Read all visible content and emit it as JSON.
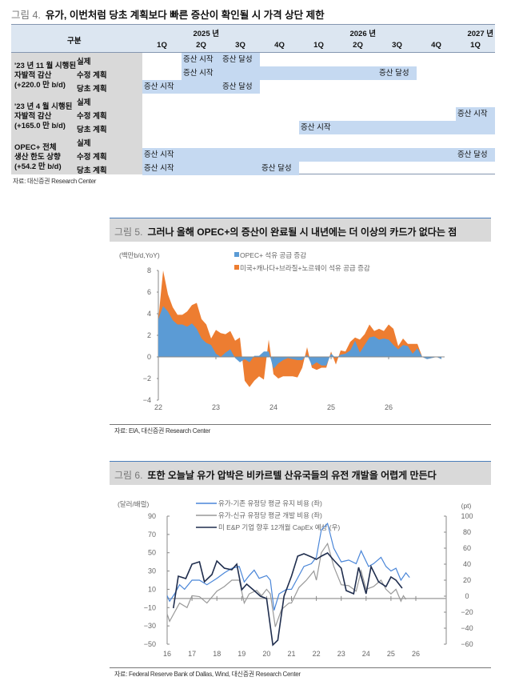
{
  "fig4": {
    "num": "그림 4.",
    "title": "유가, 이번처럼 당초 계획보다 빠른 증산이 확인될 시 가격 상단 제한",
    "header": {
      "label": "구분",
      "years": [
        {
          "label": "2025 년",
          "col": 2
        },
        {
          "label": "2026 년",
          "col": 6
        },
        {
          "label": "2027 년",
          "col": 9
        }
      ],
      "quarters": [
        "1Q",
        "2Q",
        "3Q",
        "4Q",
        "1Q",
        "2Q",
        "3Q",
        "4Q",
        "1Q"
      ]
    },
    "groups": [
      {
        "label": [
          "'23 년 11 월 시행된",
          "자발적 감산",
          "(+220.0 만 b/d)"
        ],
        "rows": [
          {
            "label": "실제",
            "band": [
              2,
              3
            ],
            "texts": [
              {
                "col": 2,
                "text": "증산 시작"
              },
              {
                "col": 3,
                "text": "증산 달성"
              }
            ]
          },
          {
            "label": "수정 계획",
            "band": [
              2,
              7
            ],
            "texts": [
              {
                "col": 2,
                "text": "증산 시작"
              },
              {
                "col": 7,
                "text": "증산 달성"
              }
            ]
          },
          {
            "label": "당초 계획",
            "band": [
              1,
              3
            ],
            "texts": [
              {
                "col": 1,
                "text": "증산 시작"
              },
              {
                "col": 3,
                "text": "증산 달성"
              }
            ]
          }
        ]
      },
      {
        "label": [
          "'23 년 4 월 시행된",
          "자발적 감산",
          "(+165.0 만 b/d)"
        ],
        "rows": [
          {
            "label": "실제",
            "band": null,
            "texts": []
          },
          {
            "label": "수정 계획",
            "band": [
              9,
              9
            ],
            "texts": [
              {
                "col": 9,
                "text": "증산 시작"
              }
            ]
          },
          {
            "label": "당초 계획",
            "band": [
              5,
              9
            ],
            "texts": [
              {
                "col": 5,
                "text": "증산 시작"
              }
            ]
          }
        ]
      },
      {
        "label": [
          "OPEC+ 전체",
          "생산 한도 상향",
          "(+54.2 만 b/d)"
        ],
        "rows": [
          {
            "label": "실제",
            "band": null,
            "texts": []
          },
          {
            "label": "수정 계획",
            "band": [
              1,
              9
            ],
            "texts": [
              {
                "col": 1,
                "text": "증산 시작"
              },
              {
                "col": 9,
                "text": "증산 달성"
              }
            ]
          },
          {
            "label": "당초 계획",
            "band": [
              1,
              4
            ],
            "texts": [
              {
                "col": 1,
                "text": "증산 시작"
              },
              {
                "col": 4,
                "text": "증산 달성"
              }
            ]
          }
        ]
      }
    ],
    "source": "자료: 대신증권 Research Center",
    "colors": {
      "band": "#c5d9f1",
      "header": "#dce6f1",
      "label_bg": "#d9d9d9"
    }
  },
  "fig5": {
    "num": "그림 5.",
    "title": "그러나 올해 OPEC+의 증산이 완료될 시 내년에는 더 이상의 카드가 없다는 점",
    "source": "자료: EIA, 대신증권 Research Center"
  },
  "fig6": {
    "num": "그림 6.",
    "title": "또한 오늘날 유가 압박은 비카르텔 산유국들의 유전 개발을 어렵게 만든다",
    "source": "자료: Federal Reserve Bank of Dallas, Wind, 대신증권 Research Center"
  },
  "chart_data": [
    {
      "type": "area",
      "stacked": true,
      "ylabel": "(백만b/d,YoY)",
      "ylim": [
        -4,
        8
      ],
      "yticks": [
        -4,
        -2,
        0,
        2,
        4,
        6,
        8
      ],
      "xticks": [
        "22",
        "23",
        "24",
        "25",
        "26"
      ],
      "x_start": "2022-01",
      "x_freq": "monthly",
      "legend_position": "top",
      "series": [
        {
          "name": "OPEC+ 석유 공급 증감",
          "color": "#5b9bd5",
          "values": [
            3.5,
            4.7,
            4.2,
            3.4,
            3.0,
            3.0,
            2.8,
            3.1,
            2.6,
            1.7,
            1.3,
            1.1,
            0.3,
            0.0,
            0.4,
            0.7,
            -0.1,
            -0.5,
            -0.2,
            -0.5,
            0.1,
            0.1,
            0.5,
            0.5,
            -1.1,
            -0.6,
            -0.3,
            -0.1,
            -0.2,
            -0.3,
            -0.3,
            0.2,
            -0.8,
            -0.5,
            -0.8,
            -0.8,
            0.3,
            -0.1,
            0.2,
            0.3,
            0.6,
            1.5,
            0.4,
            1.1,
            1.8,
            1.9,
            1.6,
            1.7,
            1.6,
            1.1,
            0.7,
            1.1,
            1.0,
            0.3,
            0.8,
            0.0,
            -0.2,
            -0.1,
            0.0,
            -0.2
          ]
        },
        {
          "name": "미국+캐나다+브라질+노르웨이 석유 공급 증감",
          "color": "#ed7d31",
          "total_values": [
            3.5,
            8.0,
            5.8,
            4.6,
            3.9,
            3.9,
            4.2,
            4.8,
            5.0,
            3.5,
            3.0,
            1.7,
            2.5,
            2.2,
            2.1,
            2.4,
            1.5,
            1.8,
            -2.2,
            -2.8,
            -2.2,
            -1.8,
            -2.1,
            1.6,
            -1.6,
            -2.0,
            -1.8,
            -1.8,
            -1.8,
            -1.9,
            -1.0,
            0.9,
            -1.0,
            -1.2,
            -1.0,
            -1.0,
            0.5,
            -0.7,
            0.6,
            0.5,
            1.4,
            1.8,
            1.6,
            2.1,
            3.0,
            2.4,
            2.6,
            2.4,
            3.0,
            2.6,
            1.0,
            1.7,
            1.2,
            1.2,
            1.2,
            0.0,
            -0.2,
            -0.1,
            0.0,
            -0.2
          ]
        }
      ]
    },
    {
      "type": "line",
      "ylabel_left": "(달러/배럴)",
      "ylabel_right": "(pt)",
      "ylim_left": [
        -50,
        90
      ],
      "yticks_left": [
        -50,
        -30,
        -10,
        10,
        30,
        50,
        70,
        90
      ],
      "ylim_right": [
        -60,
        100
      ],
      "yticks_right": [
        -60,
        -40,
        -20,
        0,
        20,
        40,
        60,
        80,
        100
      ],
      "xlim": [
        2016,
        2026
      ],
      "xticks": [
        "16",
        "17",
        "18",
        "19",
        "20",
        "21",
        "22",
        "23",
        "24",
        "25",
        "26"
      ],
      "legend_position": "top",
      "series": [
        {
          "name": "유가-기존 유정당 평균 유지 비용 (좌)",
          "axis": "left",
          "color": "#4a86d8",
          "points": [
            [
              2016,
              3
            ],
            [
              2016.1,
              -3
            ],
            [
              2016.3,
              5
            ],
            [
              2016.5,
              15
            ],
            [
              2016.7,
              10
            ],
            [
              2017,
              20
            ],
            [
              2017.3,
              20
            ],
            [
              2017.6,
              15
            ],
            [
              2018,
              22
            ],
            [
              2018.3,
              28
            ],
            [
              2018.6,
              33
            ],
            [
              2018.9,
              35
            ],
            [
              2019.1,
              18
            ],
            [
              2019.3,
              25
            ],
            [
              2019.5,
              31
            ],
            [
              2019.7,
              22
            ],
            [
              2020,
              25
            ],
            [
              2020.15,
              20
            ],
            [
              2020.3,
              -13
            ],
            [
              2020.5,
              5
            ],
            [
              2020.8,
              10
            ],
            [
              2021,
              10
            ],
            [
              2021.2,
              20
            ],
            [
              2021.5,
              35
            ],
            [
              2021.8,
              38
            ],
            [
              2022,
              45
            ],
            [
              2022.2,
              75
            ],
            [
              2022.45,
              82
            ],
            [
              2022.7,
              55
            ],
            [
              2023,
              40
            ],
            [
              2023.3,
              42
            ],
            [
              2023.6,
              38
            ],
            [
              2023.8,
              52
            ],
            [
              2024.1,
              35
            ],
            [
              2024.3,
              38
            ],
            [
              2024.6,
              45
            ],
            [
              2024.8,
              35
            ],
            [
              2025,
              30
            ],
            [
              2025.2,
              33
            ],
            [
              2025.4,
              20
            ],
            [
              2025.6,
              28
            ],
            [
              2025.75,
              23
            ]
          ]
        },
        {
          "name": "유가-신규 유정당 평균 개발 비용 (좌)",
          "axis": "left",
          "color": "#999999",
          "points": [
            [
              2016,
              -17
            ],
            [
              2016.1,
              -25
            ],
            [
              2016.3,
              -15
            ],
            [
              2016.5,
              -5
            ],
            [
              2016.8,
              -10
            ],
            [
              2017,
              3
            ],
            [
              2017.3,
              2
            ],
            [
              2017.6,
              -5
            ],
            [
              2018,
              8
            ],
            [
              2018.3,
              13
            ],
            [
              2018.6,
              20
            ],
            [
              2018.9,
              20
            ],
            [
              2019.1,
              -5
            ],
            [
              2019.3,
              5
            ],
            [
              2019.6,
              9
            ],
            [
              2019.8,
              3
            ],
            [
              2020,
              10
            ],
            [
              2020.15,
              5
            ],
            [
              2020.35,
              -31
            ],
            [
              2020.6,
              -12
            ],
            [
              2020.9,
              -5
            ],
            [
              2021,
              -5
            ],
            [
              2021.3,
              12
            ],
            [
              2021.6,
              20
            ],
            [
              2021.9,
              30
            ],
            [
              2022,
              20
            ],
            [
              2022.2,
              50
            ],
            [
              2022.45,
              60
            ],
            [
              2022.7,
              35
            ],
            [
              2023,
              15
            ],
            [
              2023.3,
              14
            ],
            [
              2023.6,
              8
            ],
            [
              2023.8,
              30
            ],
            [
              2024,
              10
            ],
            [
              2024.3,
              13
            ],
            [
              2024.6,
              20
            ],
            [
              2024.8,
              10
            ],
            [
              2025,
              5
            ],
            [
              2025.2,
              10
            ],
            [
              2025.4,
              -3
            ],
            [
              2025.5,
              3
            ],
            [
              2025.6,
              -1
            ]
          ]
        },
        {
          "name": "미 E&P 기업 향후 12개월 CapEx 예상 (우)",
          "axis": "right",
          "color": "#1f2d4d",
          "points": [
            [
              2016.25,
              -15
            ],
            [
              2016.45,
              25
            ],
            [
              2016.75,
              22
            ],
            [
              2017,
              40
            ],
            [
              2017.3,
              43
            ],
            [
              2017.5,
              18
            ],
            [
              2017.8,
              27
            ],
            [
              2018,
              44
            ],
            [
              2018.3,
              35
            ],
            [
              2018.6,
              33
            ],
            [
              2018.8,
              40
            ],
            [
              2019,
              8
            ],
            [
              2019.2,
              15
            ],
            [
              2019.5,
              7
            ],
            [
              2019.75,
              0
            ],
            [
              2020,
              -3
            ],
            [
              2020.25,
              -61
            ],
            [
              2020.45,
              -55
            ],
            [
              2020.7,
              0
            ],
            [
              2021,
              25
            ],
            [
              2021.25,
              50
            ],
            [
              2021.5,
              53
            ],
            [
              2021.8,
              49
            ],
            [
              2022,
              46
            ],
            [
              2022.2,
              50
            ],
            [
              2022.45,
              54
            ],
            [
              2022.7,
              45
            ],
            [
              2023,
              35
            ],
            [
              2023.2,
              7
            ],
            [
              2023.5,
              3
            ],
            [
              2023.7,
              36
            ],
            [
              2024,
              3
            ],
            [
              2024.2,
              37
            ],
            [
              2024.5,
              18
            ],
            [
              2024.8,
              12
            ],
            [
              2025,
              24
            ],
            [
              2025.2,
              20
            ],
            [
              2025.45,
              10
            ]
          ]
        }
      ]
    }
  ]
}
